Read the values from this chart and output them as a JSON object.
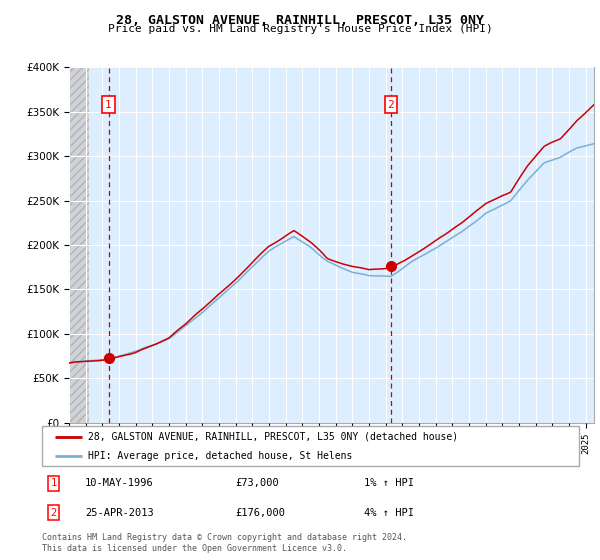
{
  "title1": "28, GALSTON AVENUE, RAINHILL, PRESCOT, L35 0NY",
  "title2": "Price paid vs. HM Land Registry's House Price Index (HPI)",
  "hpi_color": "#7bafd4",
  "price_color": "#cc0000",
  "point_color": "#cc0000",
  "bg_color": "#ddeeff",
  "grid_color": "#ffffff",
  "vline_color": "#cc0000",
  "legend1": "28, GALSTON AVENUE, RAINHILL, PRESCOT, L35 0NY (detached house)",
  "legend2": "HPI: Average price, detached house, St Helens",
  "annotation1_num": "1",
  "annotation1_date": "10-MAY-1996",
  "annotation1_price": "£73,000",
  "annotation1_hpi": "1% ↑ HPI",
  "annotation2_num": "2",
  "annotation2_date": "25-APR-2013",
  "annotation2_price": "£176,000",
  "annotation2_hpi": "4% ↑ HPI",
  "footnote": "Contains HM Land Registry data © Crown copyright and database right 2024.\nThis data is licensed under the Open Government Licence v3.0.",
  "sale1_year": 1996.37,
  "sale1_price": 73000,
  "sale2_year": 2013.32,
  "sale2_price": 176000,
  "ylim": [
    0,
    400000
  ],
  "xlim_start": 1994.0,
  "xlim_end": 2025.5
}
